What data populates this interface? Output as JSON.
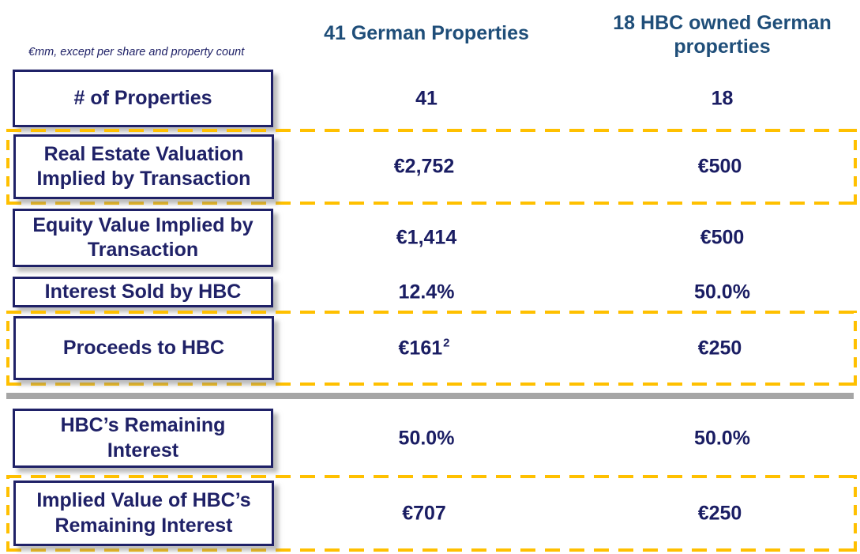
{
  "unit_note": "€mm, except per share and property count",
  "display": {
    "headers": {
      "col1": "41 German Properties",
      "col2": "18 HBC owned German\nproperties"
    },
    "rows": [
      {
        "label": "# of Properties",
        "v1": "41",
        "v2": "18"
      },
      {
        "label": "Real Estate Valuation\nImplied by Transaction",
        "v1": "€2,752",
        "v2": "€500"
      },
      {
        "label": "Equity Value Implied by\nTransaction",
        "v1": "€1,414",
        "v2": "€500"
      },
      {
        "label": "Interest Sold by HBC",
        "v1": "12.4%",
        "v2": "50.0%"
      },
      {
        "label": "Proceeds to HBC",
        "v1": "€161",
        "v1_sup": "2",
        "v2": "€250"
      },
      {
        "label": "HBC’s Remaining\nInterest",
        "v1": "50.0%",
        "v2": "50.0%"
      },
      {
        "label": "Implied Value of HBC’s\nRemaining Interest",
        "v1": "€707",
        "v2": "€250"
      }
    ]
  },
  "colors": {
    "navy_text": "#1a1d63",
    "box_border_navy": "#1f2167",
    "header_blue": "#1F4E79",
    "highlight_orange": "#FFC000",
    "divider_gray": "#A6A6A6"
  },
  "chart_data": {
    "type": "table",
    "title": "",
    "unit_note": "€mm, except per share and property count",
    "columns": [
      "41 German Properties",
      "18 HBC owned German properties"
    ],
    "rows": [
      {
        "label": "# of Properties",
        "values": [
          "41",
          "18"
        ],
        "highlighted": false
      },
      {
        "label": "Real Estate Valuation Implied by Transaction",
        "values": [
          "€2,752",
          "€500"
        ],
        "highlighted": true
      },
      {
        "label": "Equity Value Implied by Transaction",
        "values": [
          "€1,414",
          "€500"
        ],
        "highlighted": false
      },
      {
        "label": "Interest Sold by HBC",
        "values": [
          "12.4%",
          "50.0%"
        ],
        "highlighted": false
      },
      {
        "label": "Proceeds to HBC",
        "values": [
          "€161",
          "€250"
        ],
        "footnote_marker": "2",
        "highlighted": true
      },
      {
        "label": "HBC’s Remaining Interest",
        "values": [
          "50.0%",
          "50.0%"
        ],
        "highlighted": false
      },
      {
        "label": "Implied Value of HBC’s Remaining Interest",
        "values": [
          "€707",
          "€250"
        ],
        "highlighted": true
      }
    ],
    "layout_hints": {
      "divider_after_row": "Proceeds to HBC",
      "highlight_style": "orange dashed outline spanning full row width"
    }
  }
}
